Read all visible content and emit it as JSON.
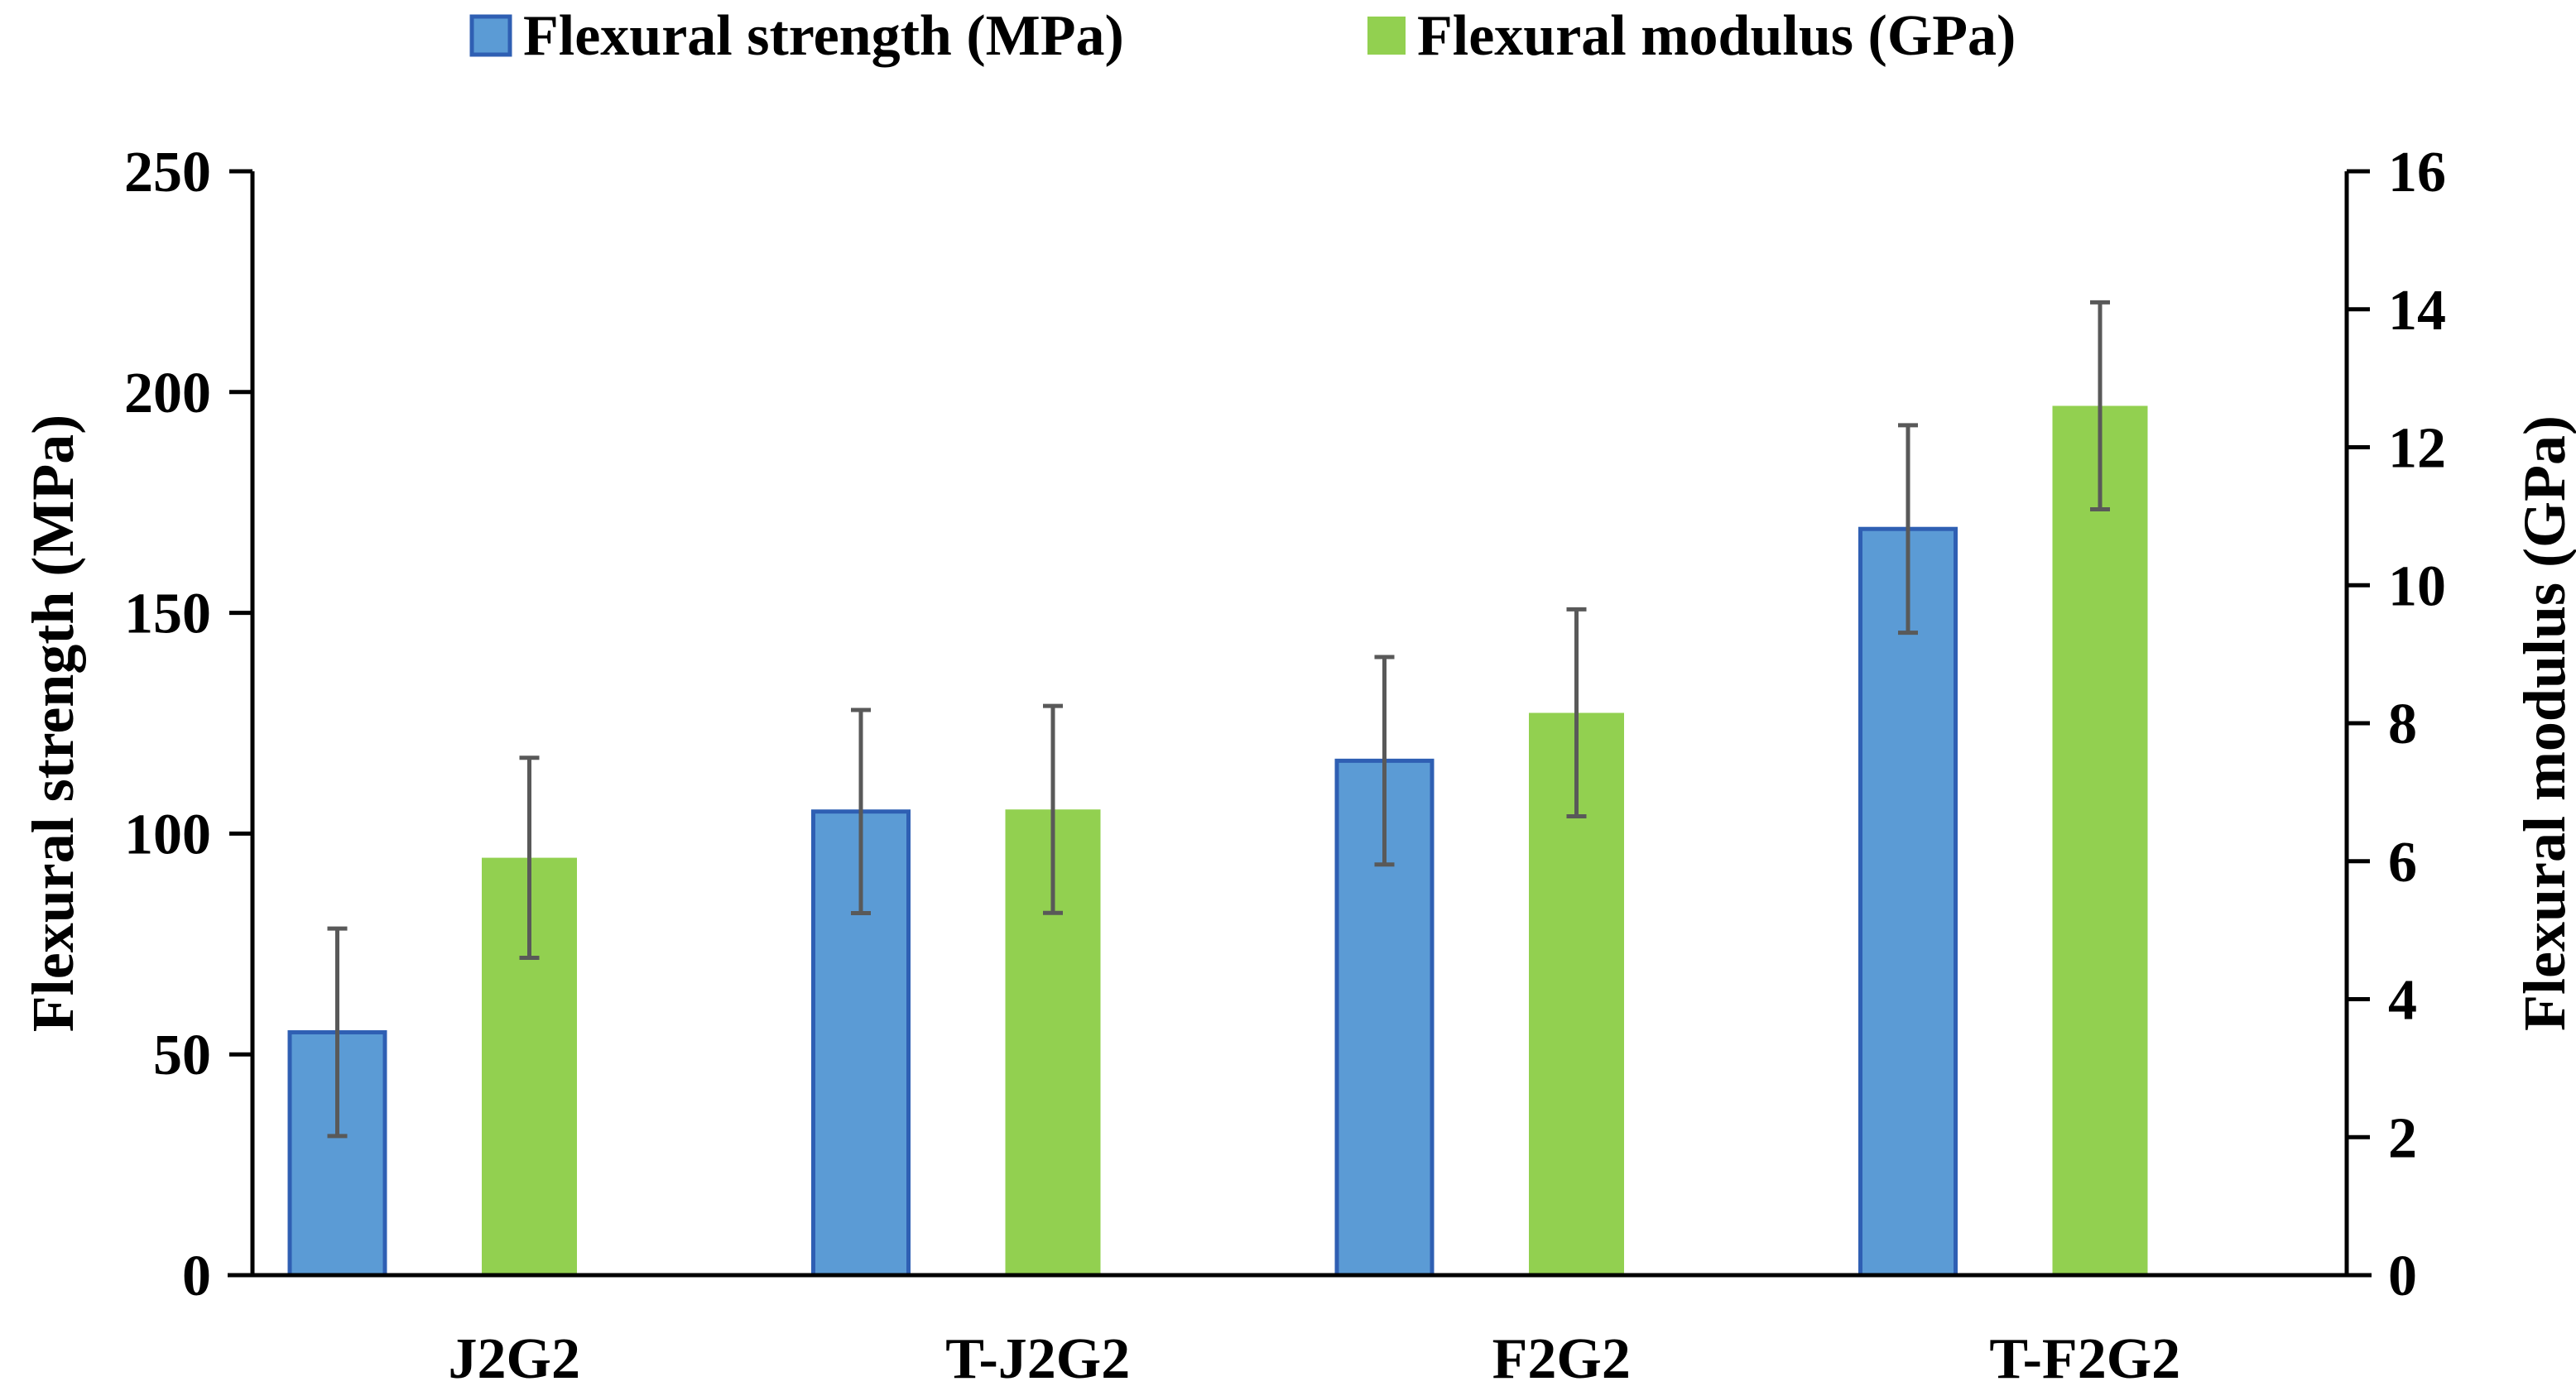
{
  "chart_data": {
    "type": "bar",
    "title": "",
    "categories": [
      "J2G2",
      "T-J2G2",
      "F2G2",
      "T-F2G2"
    ],
    "series": [
      {
        "name": "Flexural strength (MPa)",
        "axis": "left",
        "color": "#5b9bd5",
        "border_color": "#2f5fb3",
        "values": [
          55,
          105,
          116.5,
          169
        ],
        "error": [
          23.5,
          23,
          23.5,
          23.5
        ]
      },
      {
        "name": "Flexural modulus (GPa)",
        "axis": "right",
        "color": "#92d050",
        "border_color": "#92d050",
        "values": [
          6.05,
          6.75,
          8.15,
          12.6
        ],
        "error": [
          1.45,
          1.5,
          1.5,
          1.5
        ]
      }
    ],
    "y_left": {
      "label": "Flexural strength (MPa)",
      "ylim": [
        0,
        250
      ],
      "ticks": [
        "0",
        "50",
        "100",
        "150",
        "200",
        "250"
      ]
    },
    "y_right": {
      "label": "Flexural modulus (GPa)",
      "ylim": [
        0,
        16
      ],
      "ticks": [
        "0",
        "2",
        "4",
        "6",
        "8",
        "10",
        "12",
        "14",
        "16"
      ]
    },
    "xlabel": "",
    "grid": false,
    "legend_position": "top-center",
    "error_bar_color": "#595959"
  }
}
